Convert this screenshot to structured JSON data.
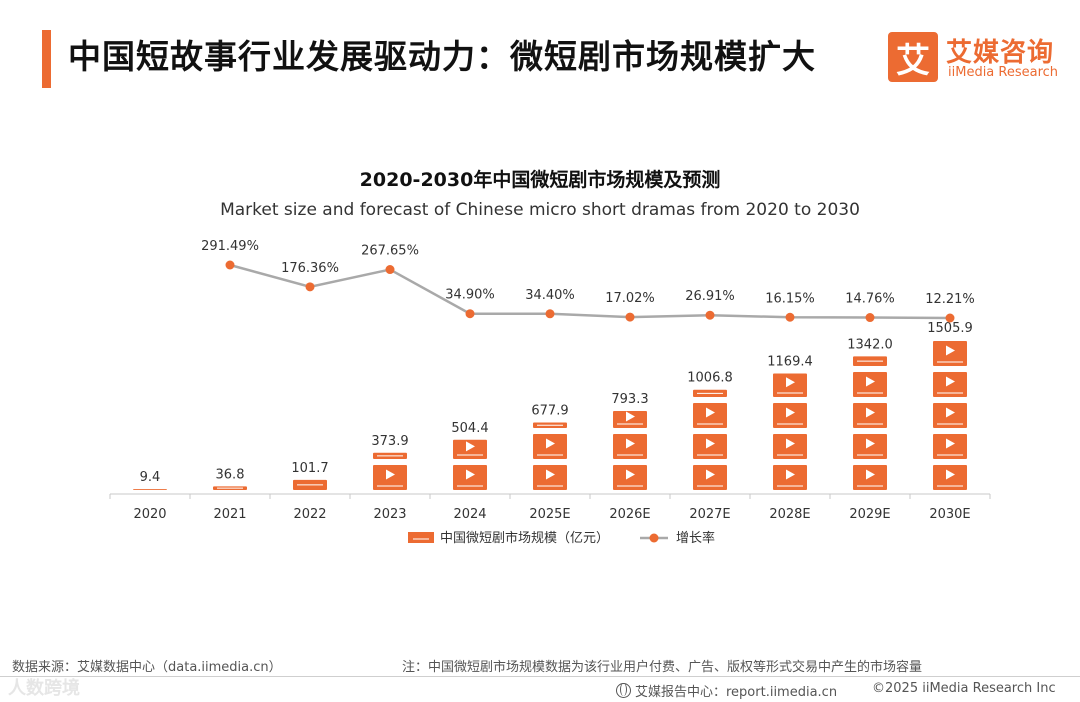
{
  "header": {
    "title": "中国短故事行业发展驱动力：微短剧市场规模扩大",
    "logo_mark": "艾",
    "logo_cn": "艾媒咨询",
    "logo_en": "iiMedia Research"
  },
  "colors": {
    "accent": "#ec6b32",
    "line": "#a9a9a9",
    "axis": "#c8c8c8"
  },
  "chart_data": {
    "type": "bar",
    "title": "2020-2030年中国微短剧市场规模及预测",
    "subtitle": "Market size and forecast of Chinese micro short dramas from 2020 to 2030",
    "categories": [
      "2020",
      "2021",
      "2022",
      "2023",
      "2024",
      "2025E",
      "2026E",
      "2027E",
      "2028E",
      "2029E",
      "2030E"
    ],
    "series": [
      {
        "name": "中国微短剧市场规模（亿元）",
        "type": "bar",
        "values": [
          9.4,
          36.8,
          101.7,
          373.9,
          504.4,
          677.9,
          793.3,
          1006.8,
          1169.4,
          1342.0,
          1505.9
        ],
        "labels": [
          "9.4",
          "36.8",
          "101.7",
          "373.9",
          "504.4",
          "677.9",
          "793.3",
          "1006.8",
          "1169.4",
          "1342.0",
          "1505.9"
        ]
      },
      {
        "name": "增长率",
        "type": "line",
        "values": [
          null,
          291.49,
          176.36,
          267.65,
          34.9,
          34.4,
          17.02,
          26.91,
          16.15,
          14.76,
          12.21
        ],
        "labels": [
          "",
          "291.49%",
          "176.36%",
          "267.65%",
          "34.90%",
          "34.40%",
          "17.02%",
          "26.91%",
          "16.15%",
          "14.76%",
          "12.21%"
        ]
      }
    ],
    "legend_position": "bottom"
  },
  "footer": {
    "source": "数据来源：艾媒数据中心（data.iimedia.cn）",
    "note": "注：中国微短剧市场规模数据为该行业用户付费、广告、版权等形式交易中产生的市场容量",
    "report": "艾媒报告中心：report.iimedia.cn",
    "copyright": "©2025  iiMedia Research Inc",
    "watermark": "人数跨境"
  }
}
